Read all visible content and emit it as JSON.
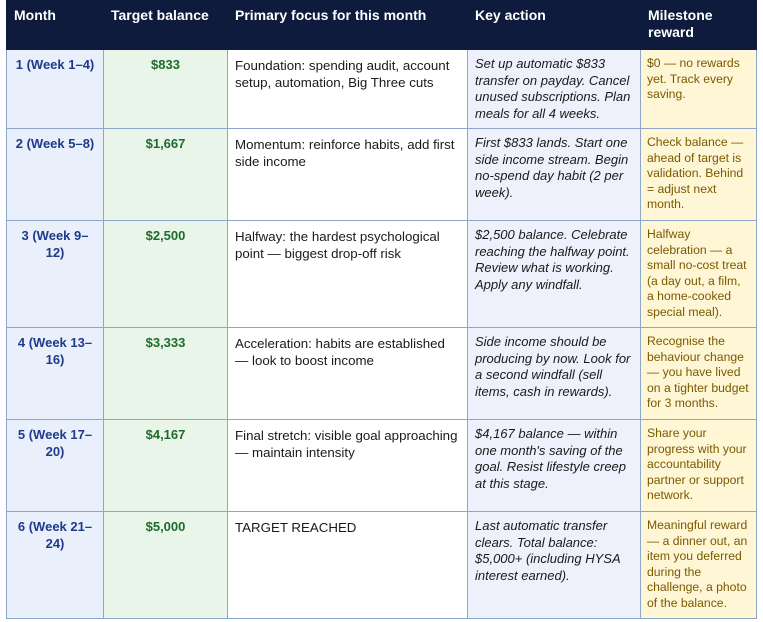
{
  "headers": {
    "month": "Month",
    "target": "Target balance",
    "focus": "Primary focus for this month",
    "action": "Key action",
    "reward": "Milestone reward"
  },
  "rows": [
    {
      "month": "1 (Week 1–4)",
      "target": "$833",
      "focus": "Foundation: spending audit, account setup, automation, Big Three cuts",
      "action": "Set up automatic $833 transfer on payday. Cancel unused subscriptions. Plan meals for all 4 weeks.",
      "reward": "$0 — no rewards yet. Track every saving."
    },
    {
      "month": "2 (Week 5–8)",
      "target": "$1,667",
      "focus": "Momentum: reinforce habits, add first side income",
      "action": "First $833 lands. Start one side income stream. Begin no-spend day habit (2 per week).",
      "reward": "Check balance — ahead of target is validation. Behind = adjust next month."
    },
    {
      "month": "3 (Week 9–12)",
      "target": "$2,500",
      "focus": "Halfway: the hardest psychological point — biggest drop-off risk",
      "action": "$2,500 balance. Celebrate reaching the halfway point. Review what is working. Apply any windfall.",
      "reward": "Halfway celebration — a small no-cost treat (a day out, a film, a home-cooked special meal)."
    },
    {
      "month": "4 (Week 13–16)",
      "target": "$3,333",
      "focus": "Acceleration: habits are established — look to boost income",
      "action": "Side income should be producing by now. Look for a second windfall (sell items, cash in rewards).",
      "reward": "Recognise the behaviour change — you have lived on a tighter budget for 3 months."
    },
    {
      "month": "5 (Week 17–20)",
      "target": "$4,167",
      "focus": "Final stretch: visible goal approaching — maintain intensity",
      "action": "$4,167 balance — within one month's saving of the goal. Resist lifestyle creep at this stage.",
      "reward": "Share your progress with your accountability partner or support network."
    },
    {
      "month": "6 (Week 21–24)",
      "target": "$5,000",
      "focus": "TARGET REACHED",
      "action": "Last automatic transfer clears. Total balance: $5,000+ (including HYSA interest earned).",
      "reward": "Meaningful reward — a dinner out, an item you deferred during the challenge, a photo of the balance."
    }
  ]
}
